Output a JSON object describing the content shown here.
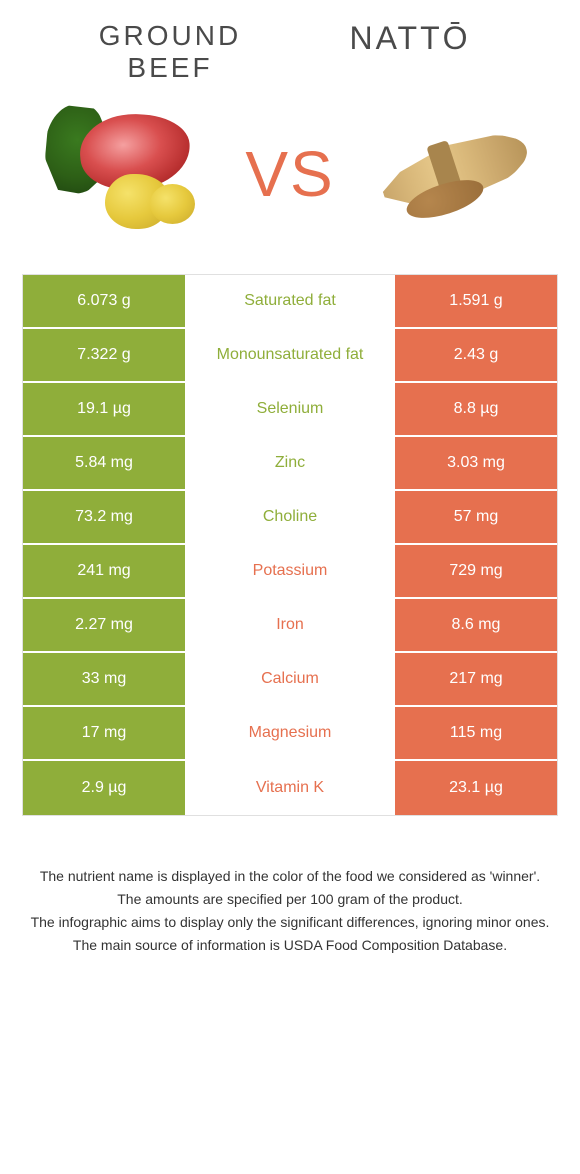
{
  "colors": {
    "left_bg": "#8fae3a",
    "right_bg": "#e6704f",
    "left_text": "#8fae3a",
    "right_text": "#e6704f",
    "vs": "#e6704f",
    "title": "#4a4a4a"
  },
  "header": {
    "left_title": "GROUND BEEF",
    "right_title": "NATTŌ",
    "vs_label": "VS"
  },
  "nutrients": [
    {
      "name": "Saturated fat",
      "left": "6.073 g",
      "right": "1.591 g",
      "winner": "left"
    },
    {
      "name": "Monounsaturated fat",
      "left": "7.322 g",
      "right": "2.43 g",
      "winner": "left"
    },
    {
      "name": "Selenium",
      "left": "19.1 µg",
      "right": "8.8 µg",
      "winner": "left"
    },
    {
      "name": "Zinc",
      "left": "5.84 mg",
      "right": "3.03 mg",
      "winner": "left"
    },
    {
      "name": "Choline",
      "left": "73.2 mg",
      "right": "57 mg",
      "winner": "left"
    },
    {
      "name": "Potassium",
      "left": "241 mg",
      "right": "729 mg",
      "winner": "right"
    },
    {
      "name": "Iron",
      "left": "2.27 mg",
      "right": "8.6 mg",
      "winner": "right"
    },
    {
      "name": "Calcium",
      "left": "33 mg",
      "right": "217 mg",
      "winner": "right"
    },
    {
      "name": "Magnesium",
      "left": "17 mg",
      "right": "115 mg",
      "winner": "right"
    },
    {
      "name": "Vitamin K",
      "left": "2.9 µg",
      "right": "23.1 µg",
      "winner": "right"
    }
  ],
  "footer": {
    "line1": "The nutrient name is displayed in the color of the food we considered as 'winner'.",
    "line2": "The amounts are specified per 100 gram of the product.",
    "line3": "The infographic aims to display only the significant differences, ignoring minor ones.",
    "line4": "The main source of information is USDA Food Composition Database."
  }
}
